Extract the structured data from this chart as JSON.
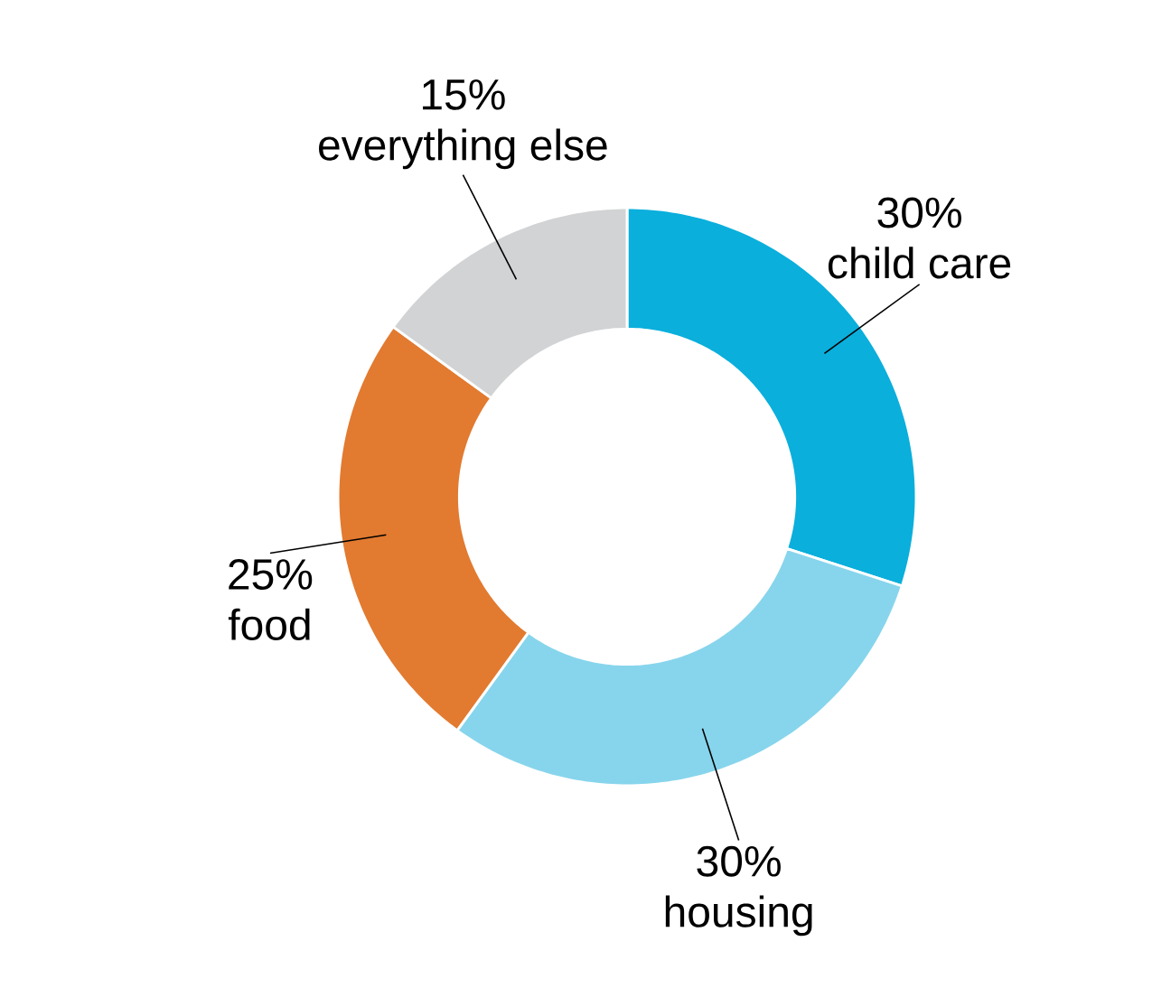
{
  "chart_data": {
    "type": "donut",
    "categories": [
      "child care",
      "housing",
      "food",
      "everything else"
    ],
    "values": [
      30,
      30,
      25,
      15
    ],
    "colors": [
      "#0aafdc",
      "#87d5ec",
      "#e27a30",
      "#d1d3d4"
    ],
    "value_labels": [
      "30%",
      "30%",
      "25%",
      "15%"
    ]
  }
}
